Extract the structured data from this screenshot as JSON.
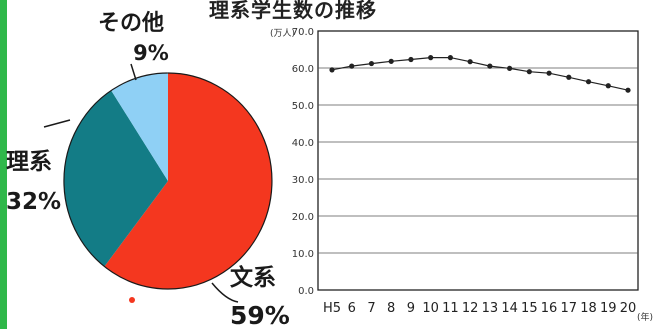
{
  "title": "理系学生数の推移",
  "pie": {
    "type": "pie",
    "slices": [
      {
        "label": "文系",
        "value": 59,
        "value_text": "59%",
        "color": "#f4371f"
      },
      {
        "label": "理系",
        "value": 32,
        "value_text": "32%",
        "color": "#137c86"
      },
      {
        "label": "その他",
        "value": 9,
        "value_text": "9%",
        "color": "#8fd0f5"
      }
    ]
  },
  "chart_data": {
    "type": "line",
    "title": "理系学生数の推移",
    "ylabel": "(万人)",
    "xlabel": "(年)",
    "ylim": [
      0,
      70
    ],
    "y_ticks": [
      "0.0",
      "10.0",
      "20.0",
      "30.0",
      "40.0",
      "50.0",
      "60.0",
      "70.0"
    ],
    "categories": [
      "H5",
      "6",
      "7",
      "8",
      "9",
      "10",
      "11",
      "12",
      "13",
      "14",
      "15",
      "16",
      "17",
      "18",
      "19",
      "20"
    ],
    "values": [
      59.5,
      60.5,
      61.2,
      61.8,
      62.3,
      62.8,
      62.8,
      61.7,
      60.5,
      59.9,
      59.0,
      58.6,
      57.5,
      56.3,
      55.2,
      54.0
    ],
    "grid": true
  }
}
